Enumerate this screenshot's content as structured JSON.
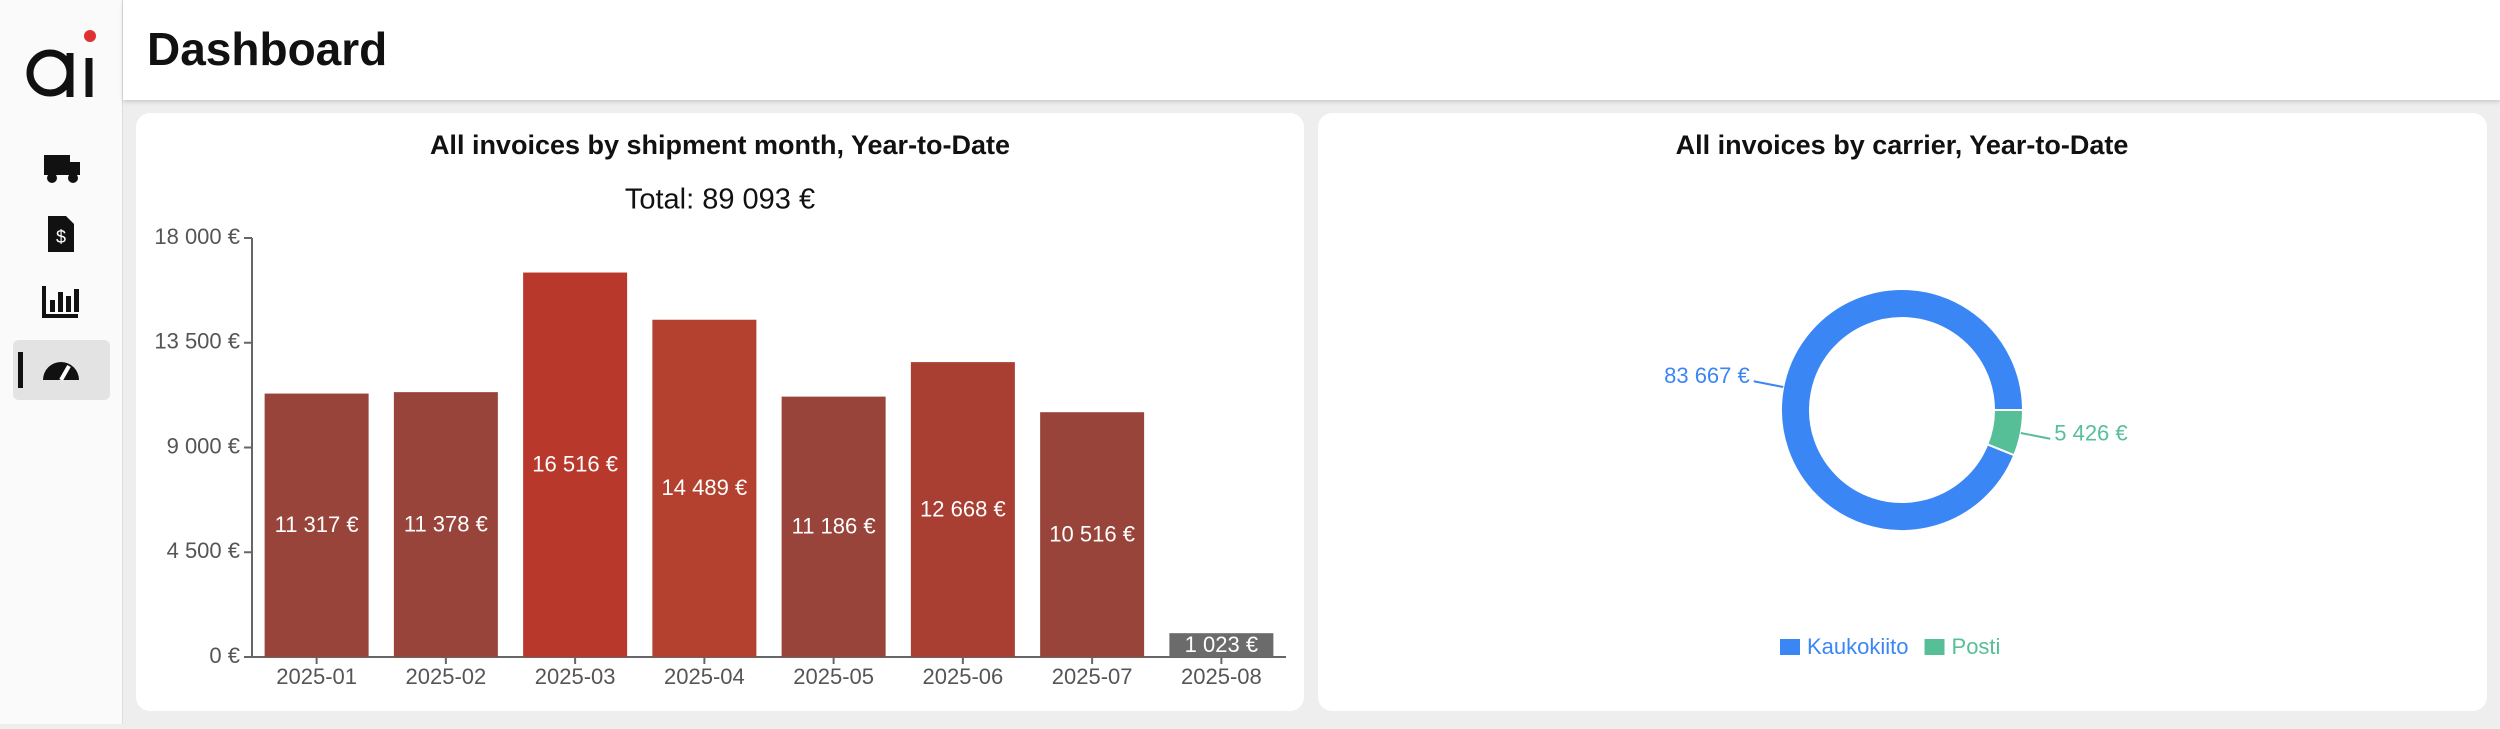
{
  "header": {
    "title": "Dashboard"
  },
  "chart_data": [
    {
      "type": "bar",
      "title": "All invoices by shipment month, Year-to-Date",
      "subtitle": "Total: 89 093 €",
      "categories": [
        "2025-01",
        "2025-02",
        "2025-03",
        "2025-04",
        "2025-05",
        "2025-06",
        "2025-07",
        "2025-08"
      ],
      "values": [
        11317,
        11378,
        16516,
        14489,
        11186,
        12668,
        10516,
        1023
      ],
      "value_labels": [
        "11 317 €",
        "11 378 €",
        "16 516 €",
        "14 489 €",
        "11 186 €",
        "12 668 €",
        "10 516 €",
        "1 023 €"
      ],
      "colors": [
        "#99443b",
        "#99443b",
        "#b8392b",
        "#b4402f",
        "#99443b",
        "#a93e33",
        "#99443b",
        "#6b6b6b"
      ],
      "ylim": [
        0,
        18000
      ],
      "yticks": [
        {
          "value": 0,
          "label": "0 €"
        },
        {
          "value": 4500,
          "label": "4 500 €"
        },
        {
          "value": 9000,
          "label": "9 000 €"
        },
        {
          "value": 13500,
          "label": "13 500 €"
        },
        {
          "value": 18000,
          "label": "18 000 €"
        }
      ]
    },
    {
      "type": "donut",
      "title": "All invoices by carrier, Year-to-Date",
      "categories": [
        "Kaukokiito",
        "Posti"
      ],
      "values": [
        83667,
        5426
      ],
      "value_labels": [
        "83 667 €",
        "5 426 €"
      ],
      "colors": [
        "#3b86f5",
        "#56bf98"
      ]
    }
  ]
}
